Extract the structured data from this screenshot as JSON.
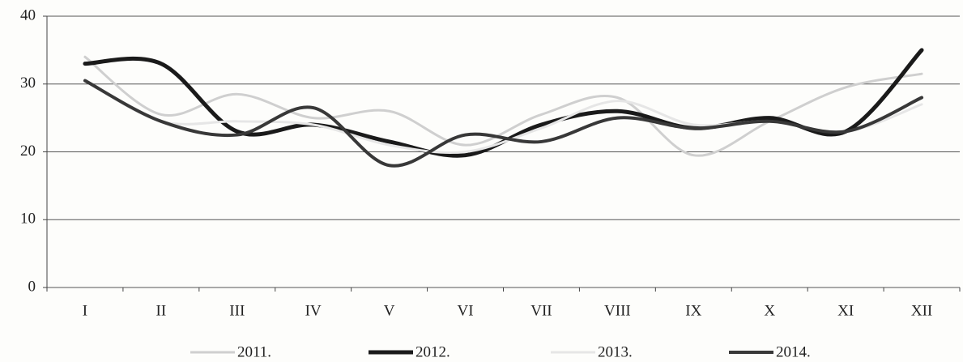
{
  "chart_data": {
    "type": "line",
    "categories": [
      "I",
      "II",
      "III",
      "IV",
      "V",
      "VI",
      "VII",
      "VIII",
      "IX",
      "X",
      "XI",
      "XII"
    ],
    "series": [
      {
        "name": "2011.",
        "color": "#cfcfcf",
        "values": [
          34,
          25.5,
          28.5,
          25,
          26,
          21,
          25.5,
          28,
          19.5,
          24.5,
          29.5,
          31.5
        ]
      },
      {
        "name": "2012.",
        "color": "#1a1a1a",
        "values": [
          33,
          33,
          23,
          24,
          21.5,
          19.5,
          24,
          26,
          23.5,
          25,
          23,
          35
        ]
      },
      {
        "name": "2013.",
        "color": "#e6e6e6",
        "values": [
          30.5,
          24.5,
          24.5,
          24,
          21,
          20,
          23.5,
          27.5,
          24,
          24.5,
          23,
          27
        ]
      },
      {
        "name": "2014.",
        "color": "#383838",
        "values": [
          30.5,
          24.5,
          22.5,
          26.5,
          18,
          22.5,
          21.5,
          25,
          23.5,
          24.5,
          23,
          28
        ]
      }
    ],
    "ylim": [
      0,
      40
    ],
    "yticks": [
      0,
      10,
      20,
      30,
      40
    ],
    "grid": true,
    "legend": "bottom"
  }
}
